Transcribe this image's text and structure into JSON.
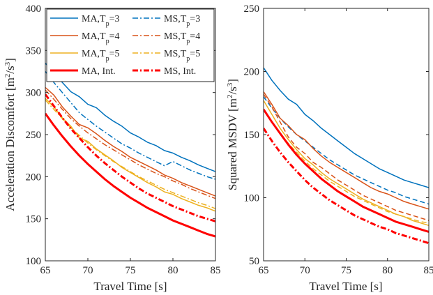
{
  "chart_data": [
    {
      "type": "line",
      "xlabel": "Travel Time [s]",
      "ylabel": "Acceleration Discomfort [m²/s³]",
      "xlim": [
        65,
        85
      ],
      "ylim": [
        100,
        400
      ],
      "xticks": [
        "65",
        "70",
        "75",
        "80",
        "85"
      ],
      "yticks": [
        "100",
        "150",
        "200",
        "250",
        "300",
        "350",
        "400"
      ],
      "grid": false,
      "legend": {
        "placement": "top-left",
        "columns": 2,
        "entries": [
          "MA,T p =3",
          "MS,T p =3",
          "MA,T p =4",
          "MS,T p =4",
          "MA,T p =5",
          "MS,T p =5",
          "MA, Int.",
          "MS, Int."
        ]
      },
      "series": [
        {
          "name": "MA,T p =3",
          "color": "#0072BD",
          "style": "solid",
          "width": 1.5,
          "x": [
            65,
            66,
            67,
            68,
            69,
            70,
            71,
            72,
            73,
            74,
            75,
            76,
            77,
            78,
            79,
            80,
            81,
            82,
            83,
            84,
            85
          ],
          "y": [
            335,
            322,
            312,
            301,
            295,
            286,
            282,
            273,
            266,
            260,
            252,
            247,
            241,
            237,
            231,
            228,
            223,
            219,
            214,
            210,
            206
          ]
        },
        {
          "name": "MS,T p =3",
          "color": "#0072BD",
          "style": "dashdot",
          "width": 1.5,
          "x": [
            65,
            66,
            67,
            68,
            69,
            70,
            71,
            72,
            73,
            74,
            75,
            76,
            77,
            78,
            79,
            80,
            81,
            82,
            83,
            84,
            85
          ],
          "y": [
            325,
            312,
            300,
            288,
            276,
            268,
            260,
            253,
            246,
            239,
            234,
            228,
            223,
            218,
            213,
            218,
            213,
            208,
            204,
            200,
            197
          ]
        },
        {
          "name": "MA,T p =4",
          "color": "#D95319",
          "style": "solid",
          "width": 1.5,
          "x": [
            65,
            66,
            67,
            68,
            69,
            70,
            71,
            72,
            73,
            74,
            75,
            76,
            77,
            78,
            79,
            80,
            81,
            82,
            83,
            84,
            85
          ],
          "y": [
            306,
            297,
            283,
            272,
            262,
            258,
            251,
            243,
            236,
            230,
            223,
            218,
            213,
            208,
            202,
            198,
            193,
            189,
            185,
            181,
            177
          ]
        },
        {
          "name": "MS,T p =4",
          "color": "#D95319",
          "style": "dashdot",
          "width": 1.5,
          "x": [
            65,
            66,
            67,
            68,
            69,
            70,
            71,
            72,
            73,
            74,
            75,
            76,
            77,
            78,
            79,
            80,
            81,
            82,
            83,
            84,
            85
          ],
          "y": [
            303,
            292,
            280,
            269,
            260,
            252,
            245,
            238,
            232,
            226,
            220,
            214,
            209,
            204,
            200,
            195,
            191,
            186,
            182,
            178,
            174
          ]
        },
        {
          "name": "MA,T p =5",
          "color": "#EDB120",
          "style": "solid",
          "width": 1.5,
          "x": [
            65,
            66,
            67,
            68,
            69,
            70,
            71,
            72,
            73,
            74,
            75,
            76,
            77,
            78,
            79,
            80,
            81,
            82,
            83,
            84,
            85
          ],
          "y": [
            293,
            283,
            270,
            260,
            246,
            242,
            233,
            226,
            219,
            211,
            205,
            199,
            193,
            188,
            182,
            179,
            174,
            170,
            166,
            163,
            159
          ]
        },
        {
          "name": "MS,T p =5",
          "color": "#EDB120",
          "style": "dashdot",
          "width": 1.5,
          "x": [
            65,
            66,
            67,
            68,
            69,
            70,
            71,
            72,
            73,
            74,
            75,
            76,
            77,
            78,
            79,
            80,
            81,
            82,
            83,
            84,
            85
          ],
          "y": [
            291,
            280,
            269,
            258,
            249,
            240,
            232,
            225,
            218,
            212,
            206,
            200,
            195,
            190,
            185,
            181,
            177,
            173,
            169,
            166,
            162
          ]
        },
        {
          "name": "MA, Int.",
          "color": "#FF0000",
          "style": "solid",
          "width": 3,
          "x": [
            65,
            66,
            67,
            68,
            69,
            70,
            71,
            72,
            73,
            74,
            75,
            76,
            77,
            78,
            79,
            80,
            81,
            82,
            83,
            84,
            85
          ],
          "y": [
            275,
            261,
            248,
            236,
            225,
            215,
            206,
            197,
            189,
            182,
            175,
            169,
            163,
            158,
            153,
            148,
            144,
            140,
            136,
            132,
            129
          ]
        },
        {
          "name": "MS, Int.",
          "color": "#FF0000",
          "style": "dashdot",
          "width": 3,
          "x": [
            65,
            66,
            67,
            68,
            69,
            70,
            71,
            72,
            73,
            74,
            75,
            76,
            77,
            78,
            79,
            80,
            81,
            82,
            83,
            84,
            85
          ],
          "y": [
            298,
            284,
            270,
            257,
            246,
            235,
            225,
            216,
            208,
            200,
            193,
            186,
            180,
            175,
            170,
            165,
            161,
            157,
            153,
            150,
            147
          ]
        }
      ]
    },
    {
      "type": "line",
      "xlabel": "Travel Time [s]",
      "ylabel": "Squared MSDV [m²/s³]",
      "xlim": [
        65,
        85
      ],
      "ylim": [
        50,
        250
      ],
      "xticks": [
        "65",
        "70",
        "75",
        "80",
        "85"
      ],
      "yticks": [
        "50",
        "100",
        "150",
        "200",
        "250"
      ],
      "grid": false,
      "series": [
        {
          "name": "MA,T p =3",
          "color": "#0072BD",
          "style": "solid",
          "width": 1.5,
          "x": [
            65,
            66,
            67,
            68,
            69,
            70,
            71,
            72,
            73,
            74,
            75,
            76,
            77,
            78,
            79,
            80,
            81,
            82,
            83,
            84,
            85
          ],
          "y": [
            203,
            193,
            185,
            178,
            174,
            166,
            161,
            155,
            150,
            145,
            140,
            135,
            131,
            127,
            123,
            120,
            117,
            114,
            112,
            110,
            108
          ]
        },
        {
          "name": "MS,T p =3",
          "color": "#0072BD",
          "style": "dashed",
          "width": 1.5,
          "x": [
            65,
            66,
            67,
            68,
            69,
            70,
            71,
            72,
            73,
            74,
            75,
            76,
            77,
            78,
            79,
            80,
            81,
            82,
            83,
            84,
            85
          ],
          "y": [
            180,
            171,
            163,
            156,
            150,
            145,
            140,
            135,
            130,
            126,
            122,
            118,
            115,
            112,
            109,
            106,
            104,
            101,
            99,
            97,
            95
          ]
        },
        {
          "name": "MA,T p =4",
          "color": "#D95319",
          "style": "solid",
          "width": 1.5,
          "x": [
            65,
            66,
            67,
            68,
            69,
            70,
            71,
            72,
            73,
            74,
            75,
            76,
            77,
            78,
            79,
            80,
            81,
            82,
            83,
            84,
            85
          ],
          "y": [
            184,
            174,
            163,
            157,
            150,
            146,
            139,
            133,
            128,
            124,
            120,
            116,
            112,
            108,
            105,
            103,
            100,
            97,
            95,
            93,
            91
          ]
        },
        {
          "name": "MS,T p =4",
          "color": "#D95319",
          "style": "dashed",
          "width": 1.5,
          "x": [
            65,
            66,
            67,
            68,
            69,
            70,
            71,
            72,
            73,
            74,
            75,
            76,
            77,
            78,
            79,
            80,
            81,
            82,
            83,
            84,
            85
          ],
          "y": [
            182,
            172,
            160,
            148,
            140,
            135,
            128,
            124,
            119,
            114,
            110,
            106,
            102,
            99,
            96,
            93,
            90,
            88,
            86,
            84,
            82
          ]
        },
        {
          "name": "MA,T p =5",
          "color": "#EDB120",
          "style": "solid",
          "width": 1.5,
          "x": [
            65,
            66,
            67,
            68,
            69,
            70,
            71,
            72,
            73,
            74,
            75,
            76,
            77,
            78,
            79,
            80,
            81,
            82,
            83,
            84,
            85
          ],
          "y": [
            177,
            166,
            155,
            146,
            138,
            131,
            126,
            120,
            115,
            111,
            107,
            103,
            99,
            96,
            93,
            90,
            87,
            85,
            82,
            80,
            78
          ]
        },
        {
          "name": "MS,T p =5",
          "color": "#EDB120",
          "style": "dashed",
          "width": 1.5,
          "x": [
            65,
            66,
            67,
            68,
            69,
            70,
            71,
            72,
            73,
            74,
            75,
            76,
            77,
            78,
            79,
            80,
            81,
            82,
            83,
            84,
            85
          ],
          "y": [
            170,
            160,
            151,
            143,
            136,
            129,
            123,
            118,
            113,
            109,
            105,
            101,
            98,
            95,
            92,
            89,
            87,
            85,
            83,
            81,
            80
          ]
        },
        {
          "name": "MA, Int.",
          "color": "#FF0000",
          "style": "solid",
          "width": 3,
          "x": [
            65,
            66,
            67,
            68,
            69,
            70,
            71,
            72,
            73,
            74,
            75,
            76,
            77,
            78,
            79,
            80,
            81,
            82,
            83,
            84,
            85
          ],
          "y": [
            170,
            160,
            151,
            142,
            134,
            127,
            121,
            115,
            110,
            105,
            101,
            97,
            93,
            90,
            87,
            84,
            81,
            79,
            77,
            75,
            73
          ]
        },
        {
          "name": "MS, Int.",
          "color": "#FF0000",
          "style": "dashdot",
          "width": 3,
          "x": [
            65,
            66,
            67,
            68,
            69,
            70,
            71,
            72,
            73,
            74,
            75,
            76,
            77,
            78,
            79,
            80,
            81,
            82,
            83,
            84,
            85
          ],
          "y": [
            155,
            145,
            136,
            128,
            121,
            114,
            108,
            103,
            98,
            94,
            90,
            86,
            83,
            80,
            77,
            75,
            72,
            70,
            68,
            66,
            64
          ]
        }
      ]
    }
  ]
}
